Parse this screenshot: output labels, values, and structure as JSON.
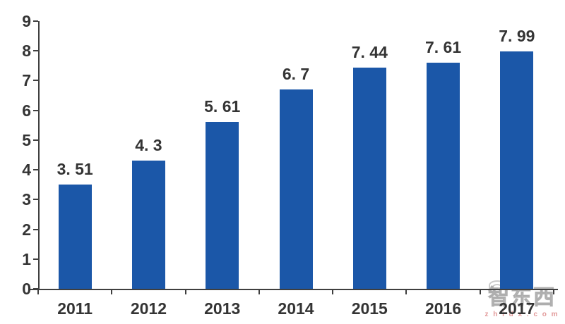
{
  "watermark": {
    "text": "智东西",
    "subtext": "z h i d x . c o m"
  },
  "chart_data": {
    "type": "bar",
    "categories": [
      "2011",
      "2012",
      "2013",
      "2014",
      "2015",
      "2016",
      "2017"
    ],
    "values": [
      3.51,
      4.3,
      5.61,
      6.7,
      7.44,
      7.61,
      7.99
    ],
    "value_labels": [
      "3. 51",
      "4. 3",
      "5. 61",
      "6. 7",
      "7. 44",
      "7. 61",
      "7. 99"
    ],
    "title": "",
    "xlabel": "",
    "ylabel": "",
    "ylim": [
      0,
      9
    ],
    "y_ticks": [
      0,
      1,
      2,
      3,
      4,
      5,
      6,
      7,
      8,
      9
    ],
    "grid": false,
    "legend": "none",
    "bar_color": "#1b57a8",
    "axis_color": "#3f3f3f",
    "text_color": "#343434"
  }
}
